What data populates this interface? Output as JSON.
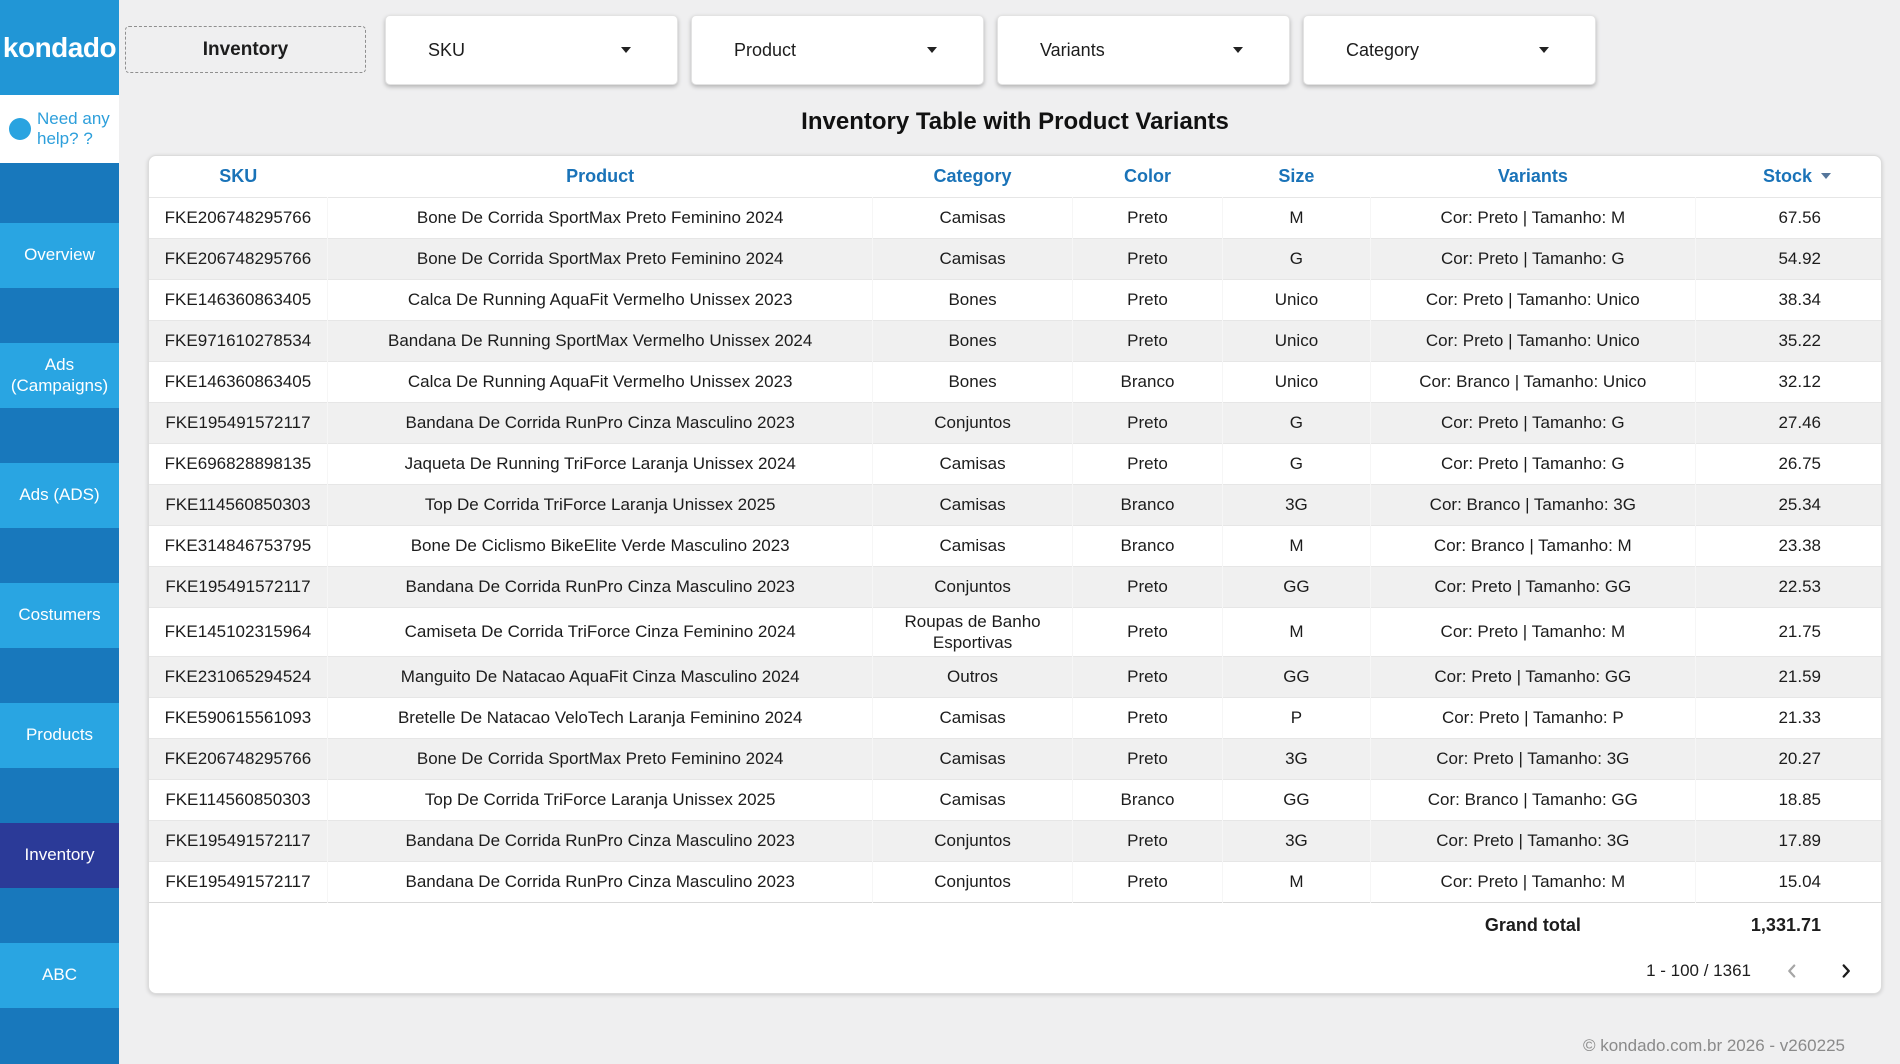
{
  "brand": {
    "logo": "kondado",
    "help_line1": "Need any",
    "help_line2": "help? ?"
  },
  "topbar": {
    "page_tab": "Inventory",
    "filters": [
      {
        "id": "sku",
        "label": "SKU"
      },
      {
        "id": "product",
        "label": "Product"
      },
      {
        "id": "variants",
        "label": "Variants"
      },
      {
        "id": "category",
        "label": "Category"
      }
    ]
  },
  "sidebar": {
    "items": [
      {
        "id": "overview",
        "label": "Overview",
        "active": false
      },
      {
        "id": "ads-campaigns",
        "label": "Ads (Campaigns)",
        "active": false
      },
      {
        "id": "ads-ads",
        "label": "Ads (ADS)",
        "active": false
      },
      {
        "id": "costumers",
        "label": "Costumers",
        "active": false
      },
      {
        "id": "products",
        "label": "Products",
        "active": false
      },
      {
        "id": "inventory",
        "label": "Inventory",
        "active": true
      },
      {
        "id": "abc",
        "label": "ABC",
        "active": false
      }
    ]
  },
  "table": {
    "title": "Inventory Table with Product Variants",
    "columns": [
      "SKU",
      "Product",
      "Category",
      "Color",
      "Size",
      "Variants",
      "Stock"
    ],
    "sort_column": "Stock",
    "sort_direction": "descending",
    "rows": [
      [
        "FKE206748295766",
        "Bone De Corrida SportMax Preto Feminino 2024",
        "Camisas",
        "Preto",
        "M",
        "Cor: Preto | Tamanho: M",
        "67.56"
      ],
      [
        "FKE206748295766",
        "Bone De Corrida SportMax Preto Feminino 2024",
        "Camisas",
        "Preto",
        "G",
        "Cor: Preto | Tamanho: G",
        "54.92"
      ],
      [
        "FKE146360863405",
        "Calca De Running AquaFit Vermelho Unissex 2023",
        "Bones",
        "Preto",
        "Unico",
        "Cor: Preto | Tamanho: Unico",
        "38.34"
      ],
      [
        "FKE971610278534",
        "Bandana De Running SportMax Vermelho Unissex 2024",
        "Bones",
        "Preto",
        "Unico",
        "Cor: Preto | Tamanho: Unico",
        "35.22"
      ],
      [
        "FKE146360863405",
        "Calca De Running AquaFit Vermelho Unissex 2023",
        "Bones",
        "Branco",
        "Unico",
        "Cor: Branco | Tamanho: Unico",
        "32.12"
      ],
      [
        "FKE195491572117",
        "Bandana De Corrida RunPro Cinza Masculino 2023",
        "Conjuntos",
        "Preto",
        "G",
        "Cor: Preto | Tamanho: G",
        "27.46"
      ],
      [
        "FKE696828898135",
        "Jaqueta De Running TriForce Laranja Unissex 2024",
        "Camisas",
        "Preto",
        "G",
        "Cor: Preto | Tamanho: G",
        "26.75"
      ],
      [
        "FKE114560850303",
        "Top De Corrida TriForce Laranja Unissex 2025",
        "Camisas",
        "Branco",
        "3G",
        "Cor: Branco | Tamanho: 3G",
        "25.34"
      ],
      [
        "FKE314846753795",
        "Bone De Ciclismo BikeElite Verde Masculino 2023",
        "Camisas",
        "Branco",
        "M",
        "Cor: Branco | Tamanho: M",
        "23.38"
      ],
      [
        "FKE195491572117",
        "Bandana De Corrida RunPro Cinza Masculino 2023",
        "Conjuntos",
        "Preto",
        "GG",
        "Cor: Preto | Tamanho: GG",
        "22.53"
      ],
      [
        "FKE145102315964",
        "Camiseta De Corrida TriForce Cinza Feminino 2024",
        "Roupas de Banho Esportivas",
        "Preto",
        "M",
        "Cor: Preto | Tamanho: M",
        "21.75"
      ],
      [
        "FKE231065294524",
        "Manguito De Natacao AquaFit Cinza Masculino 2024",
        "Outros",
        "Preto",
        "GG",
        "Cor: Preto | Tamanho: GG",
        "21.59"
      ],
      [
        "FKE590615561093",
        "Bretelle De Natacao VeloTech Laranja Feminino 2024",
        "Camisas",
        "Preto",
        "P",
        "Cor: Preto | Tamanho: P",
        "21.33"
      ],
      [
        "FKE206748295766",
        "Bone De Corrida SportMax Preto Feminino 2024",
        "Camisas",
        "Preto",
        "3G",
        "Cor: Preto | Tamanho: 3G",
        "20.27"
      ],
      [
        "FKE114560850303",
        "Top De Corrida TriForce Laranja Unissex 2025",
        "Camisas",
        "Branco",
        "GG",
        "Cor: Branco | Tamanho: GG",
        "18.85"
      ],
      [
        "FKE195491572117",
        "Bandana De Corrida RunPro Cinza Masculino 2023",
        "Conjuntos",
        "Preto",
        "3G",
        "Cor: Preto | Tamanho: 3G",
        "17.89"
      ],
      [
        "FKE195491572117",
        "Bandana De Corrida RunPro Cinza Masculino 2023",
        "Conjuntos",
        "Preto",
        "M",
        "Cor: Preto | Tamanho: M",
        "15.04"
      ]
    ],
    "grand_total_label": "Grand total",
    "grand_total_value": "1,331.71",
    "pagination": "1 - 100 / 1361"
  },
  "footer": {
    "copyright": "© kondado.com.br 2026 - v260225"
  },
  "colors": {
    "sidebar_base": "#1878bc",
    "sidebar_logo_block": "#2196d6",
    "sidebar_button": "#29a5e2",
    "sidebar_active": "#2b3a98",
    "header_text_blue": "#1a73b8",
    "row_alt_gray": "#f0f0f0",
    "page_background": "#efeff0"
  }
}
